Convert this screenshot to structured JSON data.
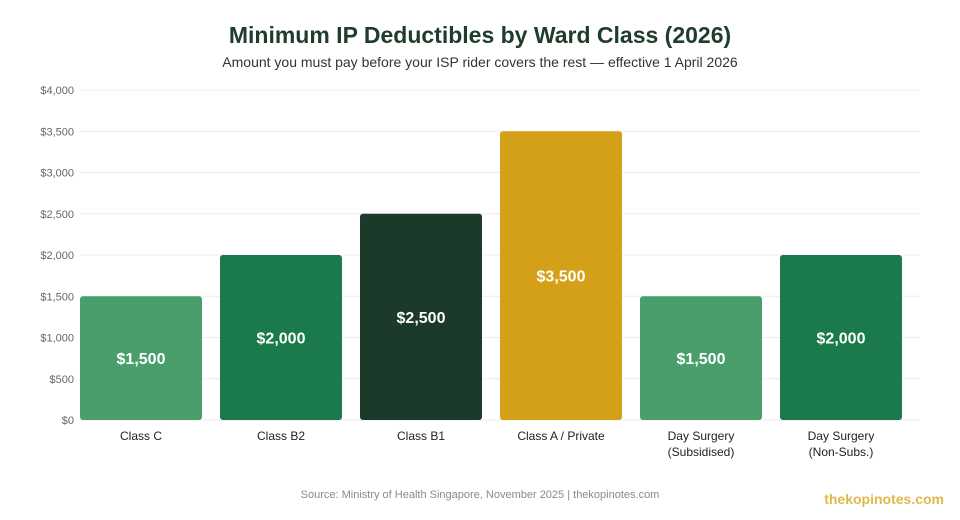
{
  "chart_data": {
    "type": "bar",
    "title": "Minimum IP Deductibles by Ward Class (2026)",
    "subtitle": "Amount you must pay before your ISP rider covers the rest — effective 1 April 2026",
    "categories": [
      [
        "Class C"
      ],
      [
        "Class B2"
      ],
      [
        "Class B1"
      ],
      [
        "Class A / Private"
      ],
      [
        "Day Surgery",
        "(Subsidised)"
      ],
      [
        "Day Surgery",
        "(Non-Subs.)"
      ]
    ],
    "values": [
      1500,
      2000,
      2500,
      3500,
      1500,
      2000
    ],
    "value_labels": [
      "$1,500",
      "$2,000",
      "$2,500",
      "$3,500",
      "$1,500",
      "$2,000"
    ],
    "colors": [
      "#4a9e6b",
      "#1b7a4b",
      "#1b3a2a",
      "#d4a017",
      "#4a9e6b",
      "#1b7a4b"
    ],
    "ylim": [
      0,
      4000
    ],
    "yticks": [
      0,
      500,
      1000,
      1500,
      2000,
      2500,
      3000,
      3500,
      4000
    ],
    "ytick_labels": [
      "$0",
      "$500",
      "$1,000",
      "$1,500",
      "$2,000",
      "$2,500",
      "$3,000",
      "$3,500",
      "$4,000"
    ],
    "grid": true,
    "legend": "none"
  },
  "footer": {
    "source": "Source: Ministry of Health Singapore, November 2025 | thekopinotes.com",
    "brand": "thekopinotes.com"
  }
}
